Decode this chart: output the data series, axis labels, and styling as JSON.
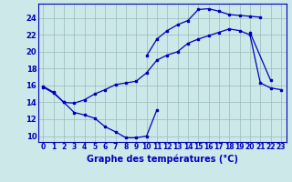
{
  "title": "Graphe des températures (°C)",
  "bg_color": "#cce8e8",
  "line_color": "#0000bb",
  "grid_color": "#99bbbb",
  "x_ticks": [
    0,
    1,
    2,
    3,
    4,
    5,
    6,
    7,
    8,
    9,
    10,
    11,
    12,
    13,
    14,
    15,
    16,
    17,
    18,
    19,
    20,
    21,
    22,
    23
  ],
  "y_ticks": [
    10,
    12,
    14,
    16,
    18,
    20,
    22,
    24
  ],
  "xlim": [
    -0.5,
    23.5
  ],
  "ylim": [
    9.3,
    25.7
  ],
  "series": [
    {
      "x": [
        0,
        1,
        2,
        3,
        4,
        5,
        6,
        7,
        8,
        9,
        10,
        11
      ],
      "y": [
        15.8,
        15.1,
        14.0,
        12.8,
        12.5,
        12.1,
        11.1,
        10.5,
        9.8,
        9.8,
        10.0,
        13.1
      ]
    },
    {
      "x": [
        0,
        1,
        2,
        3,
        4,
        5,
        6,
        7,
        8,
        9,
        10,
        11,
        12,
        13,
        14,
        15,
        16,
        17,
        18,
        19,
        20,
        21,
        22,
        23
      ],
      "y": [
        15.9,
        15.2,
        14.0,
        13.9,
        14.3,
        15.0,
        15.5,
        16.1,
        16.3,
        16.5,
        17.5,
        19.0,
        19.6,
        20.0,
        21.0,
        21.5,
        21.9,
        22.3,
        22.7,
        22.5,
        22.0,
        16.3,
        15.7,
        15.5
      ]
    },
    {
      "x": [
        10,
        11,
        12,
        13,
        14,
        15,
        16,
        17,
        18,
        19,
        20,
        21
      ],
      "y": [
        19.5,
        21.5,
        22.5,
        23.2,
        23.7,
        25.0,
        25.1,
        24.8,
        24.4,
        24.3,
        24.2,
        24.1
      ]
    },
    {
      "x": [
        20,
        22
      ],
      "y": [
        22.3,
        16.6
      ]
    }
  ]
}
